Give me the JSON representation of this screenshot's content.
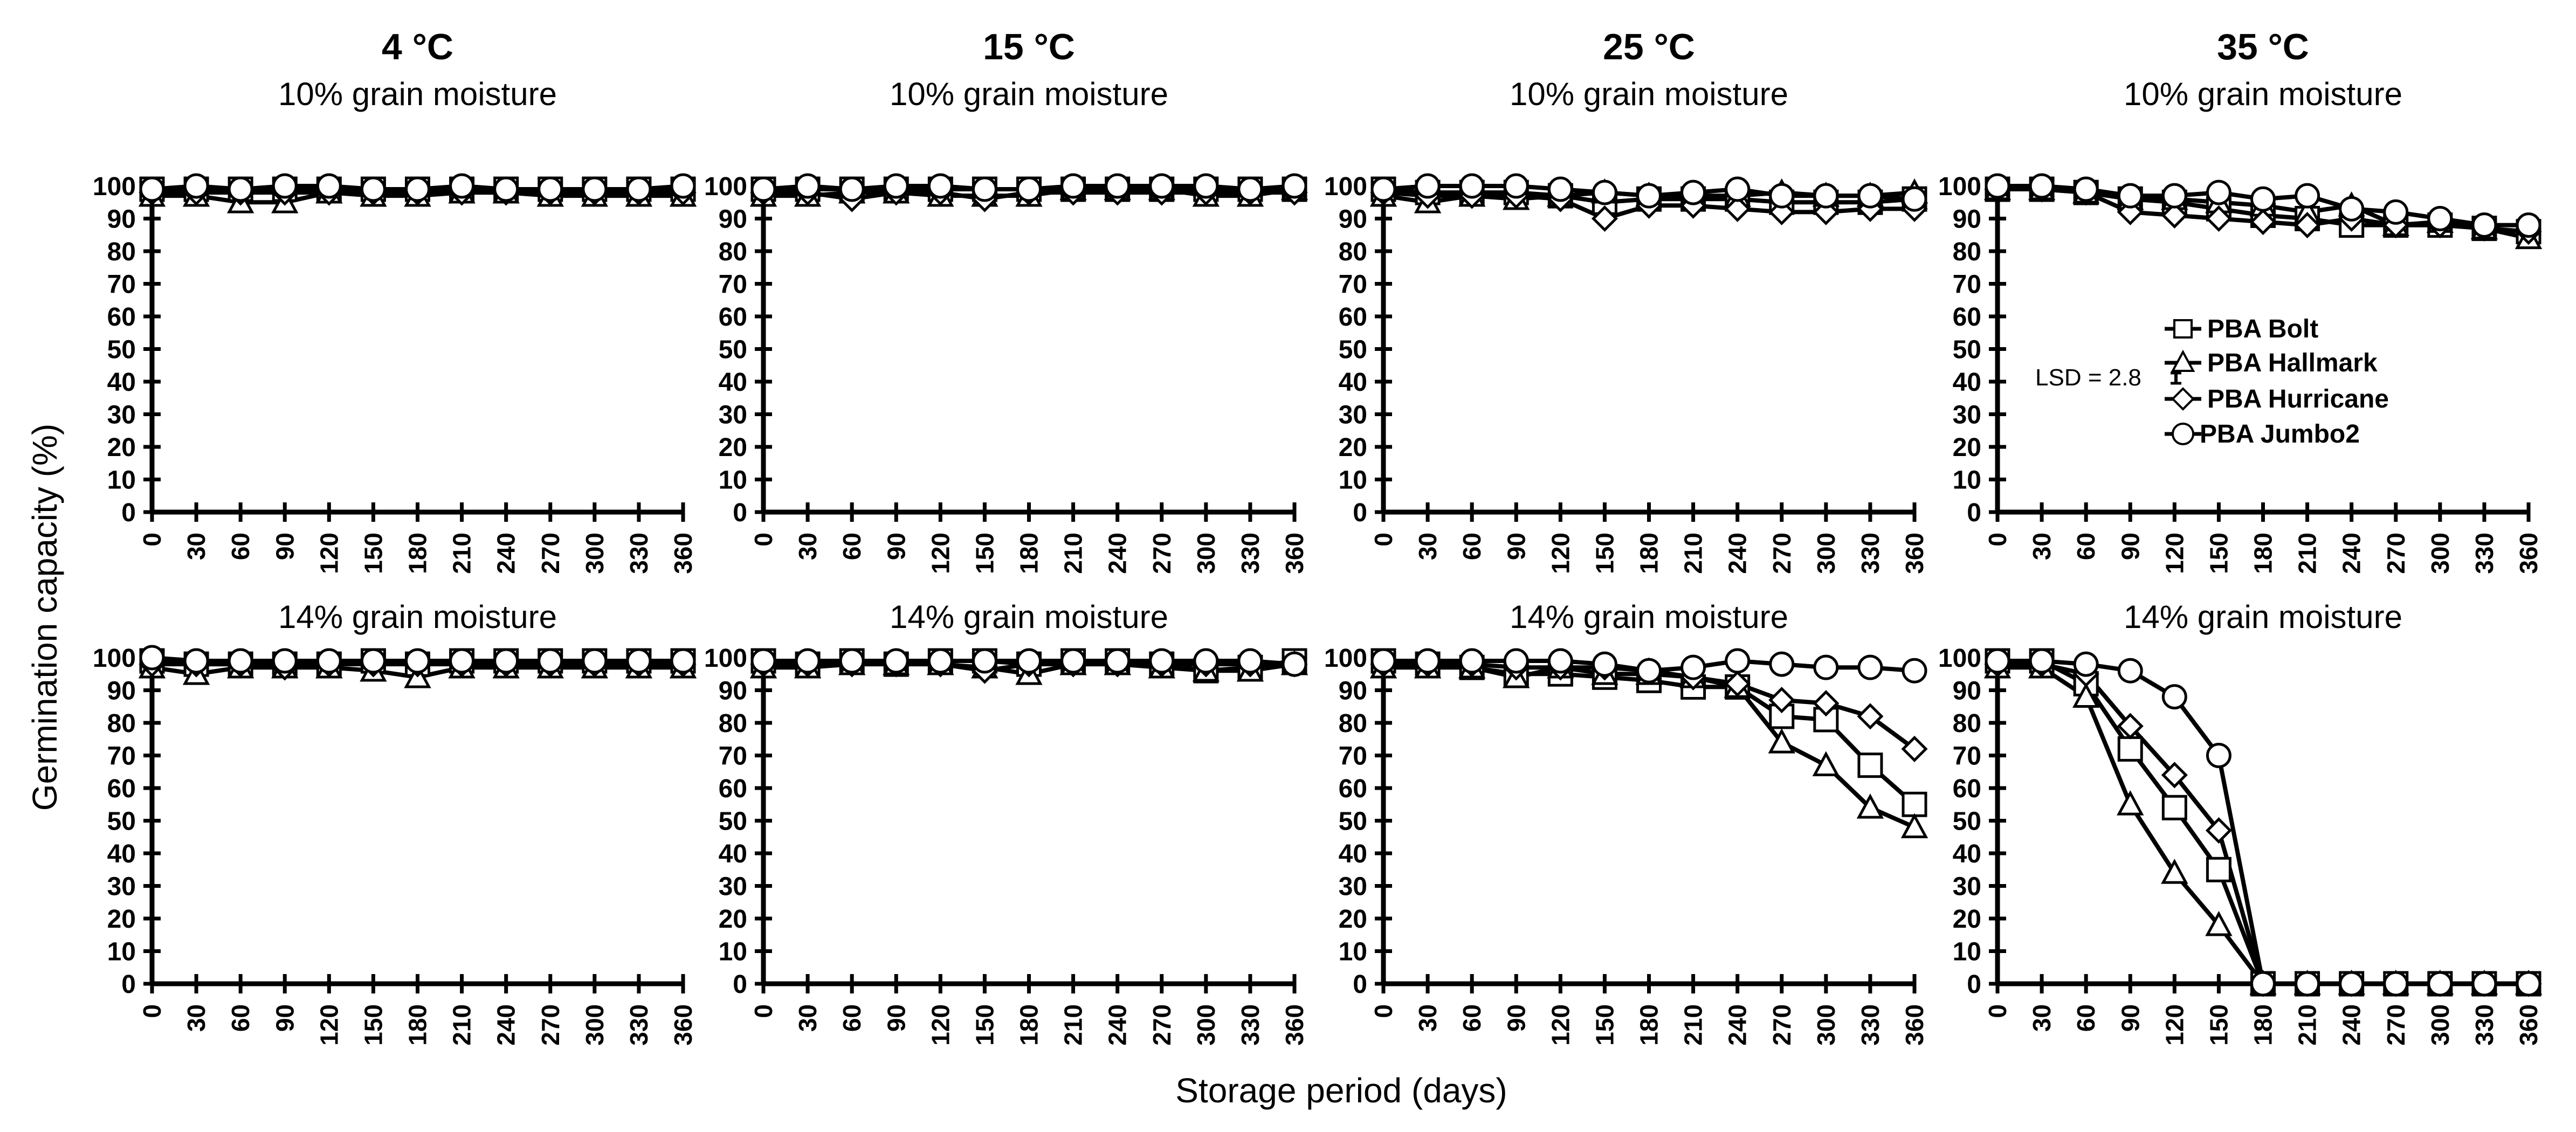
{
  "figure": {
    "ylabel": "Germination capacity (%)",
    "xlabel": "Storage period (days)",
    "lsd_label": "LSD = 2.8"
  },
  "legend": {
    "position": "inside top-right panel, right side",
    "entries": [
      {
        "name": "PBA Bolt",
        "marker": "square"
      },
      {
        "name": "PBA Hallmark",
        "marker": "triangle"
      },
      {
        "name": "PBA Hurricane",
        "marker": "diamond"
      },
      {
        "name": "PBA Jumbo2",
        "marker": "circle"
      }
    ]
  },
  "chart_data": [
    {
      "type": "line",
      "temp": "4 °C",
      "title": "10% grain moisture",
      "xlim": [
        0,
        360
      ],
      "ylim": [
        0,
        100
      ],
      "x": [
        0,
        30,
        60,
        90,
        120,
        150,
        180,
        210,
        240,
        270,
        300,
        330,
        360
      ],
      "series": [
        {
          "name": "PBA Bolt",
          "values": [
            99,
            99,
            99,
            99,
            99,
            99,
            99,
            99,
            99,
            99,
            99,
            99,
            99
          ]
        },
        {
          "name": "PBA Hallmark",
          "values": [
            97,
            97,
            95,
            95,
            98,
            97,
            97,
            98,
            98,
            97,
            97,
            97,
            97
          ]
        },
        {
          "name": "PBA Hurricane",
          "values": [
            98,
            98,
            98,
            98,
            98,
            98,
            98,
            98,
            98,
            98,
            98,
            98,
            98
          ]
        },
        {
          "name": "PBA Jumbo2",
          "values": [
            99,
            100,
            99,
            100,
            100,
            99,
            99,
            100,
            99,
            99,
            99,
            99,
            100
          ]
        }
      ]
    },
    {
      "type": "line",
      "temp": "15 °C",
      "title": "10% grain moisture",
      "xlim": [
        0,
        360
      ],
      "ylim": [
        0,
        100
      ],
      "x": [
        0,
        30,
        60,
        90,
        120,
        150,
        180,
        210,
        240,
        270,
        300,
        330,
        360
      ],
      "series": [
        {
          "name": "PBA Bolt",
          "values": [
            99,
            99,
            99,
            99,
            99,
            99,
            99,
            99,
            99,
            99,
            99,
            99,
            99
          ]
        },
        {
          "name": "PBA Hallmark",
          "values": [
            97,
            97,
            98,
            98,
            97,
            97,
            97,
            99,
            99,
            99,
            97,
            97,
            99
          ]
        },
        {
          "name": "PBA Hurricane",
          "values": [
            98,
            98,
            96,
            98,
            98,
            96,
            98,
            98,
            98,
            98,
            98,
            98,
            98
          ]
        },
        {
          "name": "PBA Jumbo2",
          "values": [
            99,
            100,
            99,
            100,
            100,
            99,
            99,
            100,
            100,
            100,
            100,
            99,
            100
          ]
        }
      ]
    },
    {
      "type": "line",
      "temp": "25 °C",
      "title": "10% grain moisture",
      "xlim": [
        0,
        360
      ],
      "ylim": [
        0,
        100
      ],
      "x": [
        0,
        30,
        60,
        90,
        120,
        150,
        180,
        210,
        240,
        270,
        300,
        330,
        360
      ],
      "series": [
        {
          "name": "PBA Bolt",
          "values": [
            99,
            98,
            98,
            98,
            97,
            95,
            96,
            96,
            96,
            95,
            95,
            95,
            96
          ]
        },
        {
          "name": "PBA Hallmark",
          "values": [
            97,
            95,
            97,
            96,
            97,
            98,
            97,
            97,
            97,
            98,
            97,
            97,
            98
          ]
        },
        {
          "name": "PBA Hurricane",
          "values": [
            98,
            97,
            97,
            97,
            96,
            90,
            94,
            94,
            93,
            92,
            92,
            93,
            93
          ]
        },
        {
          "name": "PBA Jumbo2",
          "values": [
            99,
            100,
            100,
            100,
            99,
            98,
            97,
            98,
            99,
            97,
            97,
            97,
            96
          ]
        }
      ]
    },
    {
      "type": "line",
      "temp": "35 °C",
      "title": "10% grain moisture",
      "xlim": [
        0,
        360
      ],
      "ylim": [
        0,
        100
      ],
      "x": [
        0,
        30,
        60,
        90,
        120,
        150,
        180,
        210,
        240,
        270,
        300,
        330,
        360
      ],
      "series": [
        {
          "name": "PBA Bolt",
          "values": [
            99,
            99,
            98,
            96,
            95,
            93,
            91,
            90,
            88,
            88,
            88,
            87,
            86
          ]
        },
        {
          "name": "PBA Hallmark",
          "values": [
            99,
            99,
            98,
            96,
            96,
            95,
            94,
            92,
            94,
            88,
            89,
            87,
            84
          ]
        },
        {
          "name": "PBA Hurricane",
          "values": [
            99,
            99,
            98,
            92,
            91,
            90,
            89,
            88,
            90,
            88,
            88,
            87,
            86
          ]
        },
        {
          "name": "PBA Jumbo2",
          "values": [
            100,
            100,
            99,
            97,
            97,
            98,
            96,
            97,
            93,
            92,
            90,
            88,
            88
          ]
        }
      ]
    },
    {
      "type": "line",
      "temp": "",
      "title": "14% grain moisture",
      "xlim": [
        0,
        360
      ],
      "ylim": [
        0,
        100
      ],
      "x": [
        0,
        30,
        60,
        90,
        120,
        150,
        180,
        210,
        240,
        270,
        300,
        330,
        360
      ],
      "series": [
        {
          "name": "PBA Bolt",
          "values": [
            99,
            98,
            98,
            98,
            98,
            99,
            98,
            99,
            99,
            99,
            99,
            99,
            99
          ]
        },
        {
          "name": "PBA Hallmark",
          "values": [
            97,
            95,
            97,
            97,
            97,
            96,
            94,
            97,
            97,
            97,
            97,
            97,
            97
          ]
        },
        {
          "name": "PBA Hurricane",
          "values": [
            98,
            98,
            98,
            97,
            98,
            98,
            98,
            98,
            98,
            98,
            98,
            98,
            98
          ]
        },
        {
          "name": "PBA Jumbo2",
          "values": [
            100,
            99,
            99,
            99,
            99,
            99,
            99,
            99,
            99,
            99,
            99,
            99,
            99
          ]
        }
      ]
    },
    {
      "type": "line",
      "temp": "",
      "title": "14% grain moisture",
      "xlim": [
        0,
        360
      ],
      "ylim": [
        0,
        100
      ],
      "x": [
        0,
        30,
        60,
        90,
        120,
        150,
        180,
        210,
        240,
        270,
        300,
        330,
        360
      ],
      "series": [
        {
          "name": "PBA Bolt",
          "values": [
            99,
            98,
            99,
            98,
            99,
            99,
            98,
            99,
            99,
            98,
            96,
            97,
            99
          ]
        },
        {
          "name": "PBA Hallmark",
          "values": [
            97,
            97,
            98,
            98,
            98,
            97,
            95,
            98,
            98,
            97,
            96,
            96,
            98
          ]
        },
        {
          "name": "PBA Hurricane",
          "values": [
            98,
            98,
            98,
            98,
            98,
            96,
            98,
            98,
            98,
            98,
            98,
            98,
            98
          ]
        },
        {
          "name": "PBA Jumbo2",
          "values": [
            99,
            99,
            99,
            99,
            99,
            99,
            99,
            99,
            99,
            99,
            99,
            99,
            98
          ]
        }
      ]
    },
    {
      "type": "line",
      "temp": "",
      "title": "14% grain moisture",
      "xlim": [
        0,
        360
      ],
      "ylim": [
        0,
        100
      ],
      "x": [
        0,
        30,
        60,
        90,
        120,
        150,
        180,
        210,
        240,
        270,
        300,
        330,
        360
      ],
      "series": [
        {
          "name": "PBA Bolt",
          "values": [
            99,
            98,
            97,
            95,
            95,
            94,
            93,
            91,
            91,
            82,
            81,
            67,
            55
          ]
        },
        {
          "name": "PBA Hallmark",
          "values": [
            97,
            97,
            97,
            94,
            97,
            95,
            95,
            94,
            91,
            74,
            67,
            54,
            48
          ]
        },
        {
          "name": "PBA Hurricane",
          "values": [
            98,
            98,
            98,
            97,
            97,
            97,
            96,
            94,
            92,
            87,
            86,
            82,
            72
          ]
        },
        {
          "name": "PBA Jumbo2",
          "values": [
            99,
            99,
            99,
            99,
            99,
            98,
            96,
            97,
            99,
            98,
            97,
            97,
            96
          ]
        }
      ]
    },
    {
      "type": "line",
      "temp": "",
      "title": "14% grain moisture",
      "xlim": [
        0,
        360
      ],
      "ylim": [
        0,
        100
      ],
      "x": [
        0,
        30,
        60,
        90,
        120,
        150,
        180,
        210,
        240,
        270,
        300,
        330,
        360
      ],
      "series": [
        {
          "name": "PBA Bolt",
          "values": [
            99,
            99,
            92,
            72,
            54,
            35,
            0,
            0,
            0,
            0,
            0,
            0,
            0
          ]
        },
        {
          "name": "PBA Hallmark",
          "values": [
            97,
            97,
            88,
            55,
            34,
            18,
            0,
            0,
            0,
            0,
            0,
            0,
            0
          ]
        },
        {
          "name": "PBA Hurricane",
          "values": [
            98,
            98,
            95,
            79,
            64,
            47,
            0,
            0,
            0,
            0,
            0,
            0,
            0
          ]
        },
        {
          "name": "PBA Jumbo2",
          "values": [
            99,
            99,
            98,
            96,
            88,
            70,
            0,
            0,
            0,
            0,
            0,
            0,
            0
          ]
        }
      ]
    }
  ]
}
